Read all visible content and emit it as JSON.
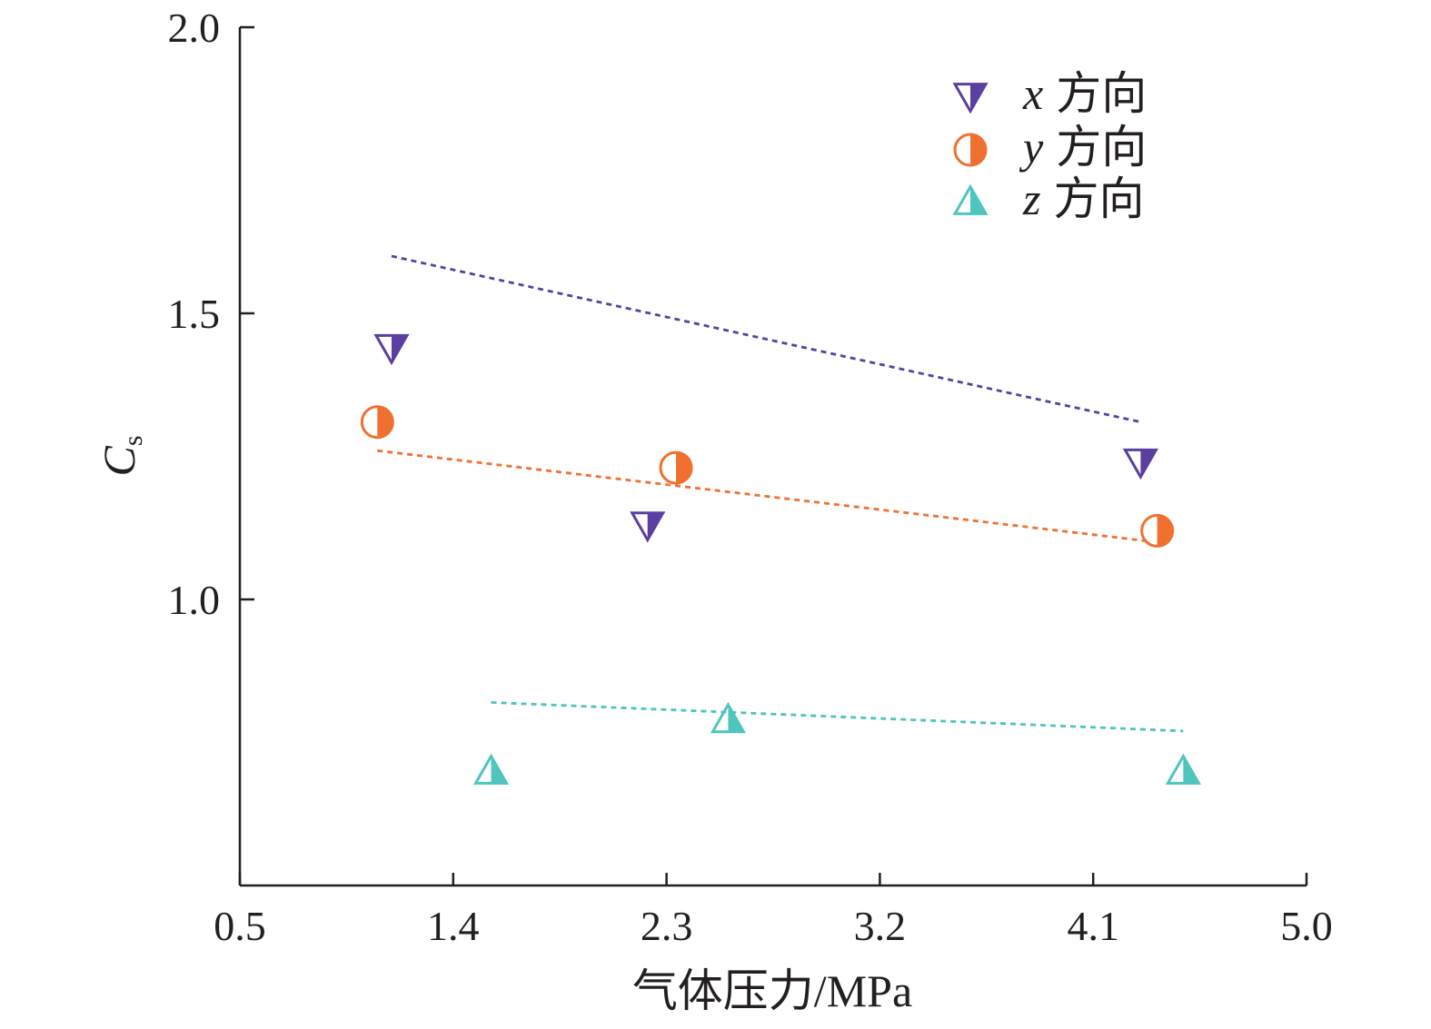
{
  "chart_data": {
    "type": "scatter",
    "xlabel": "气体压力/MPa",
    "ylabel_main": "C",
    "ylabel_sub": "s",
    "xlim": [
      0.5,
      5.0
    ],
    "ylim": [
      0.5,
      2.0
    ],
    "x_ticks": [
      "0.5",
      "1.4",
      "2.3",
      "3.2",
      "4.1",
      "5.0"
    ],
    "y_ticks": [
      "1.0",
      "1.5",
      "2.0"
    ],
    "grid": false,
    "legend_position": "top-right",
    "series": [
      {
        "name_var": "x",
        "name_suffix": "方向",
        "marker": "down-triangle-half",
        "color": "#5b3fa0",
        "x": [
          1.14,
          2.22,
          4.3
        ],
        "y": [
          1.44,
          1.13,
          1.24
        ],
        "trend": {
          "x": [
            1.14,
            4.3
          ],
          "y": [
            1.6,
            1.31
          ]
        }
      },
      {
        "name_var": "y",
        "name_suffix": "方向",
        "marker": "circle-half",
        "color": "#f07030",
        "x": [
          1.08,
          2.34,
          4.37
        ],
        "y": [
          1.31,
          1.23,
          1.12
        ],
        "trend": {
          "x": [
            1.08,
            4.37
          ],
          "y": [
            1.26,
            1.1
          ]
        }
      },
      {
        "name_var": "z",
        "name_suffix": "方向",
        "marker": "up-triangle-half",
        "color": "#4ec5bd",
        "x": [
          1.56,
          2.56,
          4.48
        ],
        "y": [
          0.7,
          0.79,
          0.7
        ],
        "trend": {
          "x": [
            1.56,
            4.48
          ],
          "y": [
            0.82,
            0.77
          ]
        }
      }
    ]
  }
}
